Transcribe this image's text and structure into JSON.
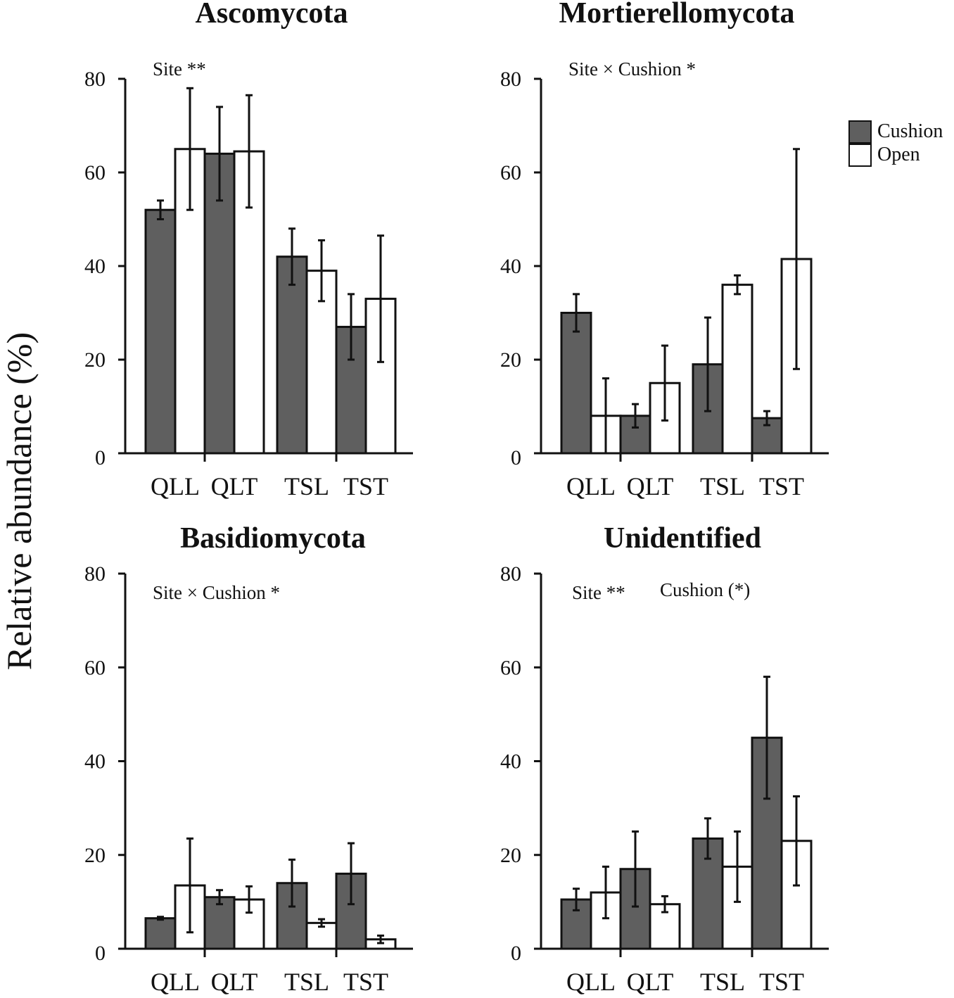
{
  "figure": {
    "ylabel": "Relative abundance (%)",
    "legend": {
      "cushion_label": "Cushion",
      "open_label": "Open",
      "cushion_color": "#5f5f5f",
      "open_color": "#ffffff"
    }
  },
  "chart_data": [
    {
      "type": "bar",
      "title": "Ascomycota",
      "annotations": [
        "Site **"
      ],
      "categories": [
        "QLL",
        "QLT",
        "TSL",
        "TST"
      ],
      "ylim": [
        0,
        80
      ],
      "yticks": [
        0,
        20,
        40,
        60,
        80
      ],
      "series": [
        {
          "name": "Cushion",
          "values": [
            52,
            64,
            42,
            27
          ],
          "errors": [
            2,
            10,
            6,
            7
          ]
        },
        {
          "name": "Open",
          "values": [
            65,
            64.5,
            39,
            33
          ],
          "errors": [
            13,
            12,
            6.5,
            13.5
          ]
        }
      ]
    },
    {
      "type": "bar",
      "title": "Mortierellomycota",
      "annotations": [
        "Site × Cushion *"
      ],
      "categories": [
        "QLL",
        "QLT",
        "TSL",
        "TST"
      ],
      "ylim": [
        0,
        80
      ],
      "yticks": [
        0,
        20,
        40,
        60,
        80
      ],
      "series": [
        {
          "name": "Cushion",
          "values": [
            30,
            8,
            19,
            7.5
          ],
          "errors": [
            4,
            2.5,
            10,
            1.5
          ]
        },
        {
          "name": "Open",
          "values": [
            8,
            15,
            36,
            41.5
          ],
          "errors": [
            8,
            8,
            2,
            23.5
          ]
        }
      ]
    },
    {
      "type": "bar",
      "title": "Basidiomycota",
      "annotations": [
        "Site × Cushion *"
      ],
      "categories": [
        "QLL",
        "QLT",
        "TSL",
        "TST"
      ],
      "ylim": [
        0,
        80
      ],
      "yticks": [
        0,
        20,
        40,
        60,
        80
      ],
      "series": [
        {
          "name": "Cushion",
          "values": [
            6.5,
            11,
            14,
            16
          ],
          "errors": [
            0.3,
            1.5,
            5,
            6.5
          ]
        },
        {
          "name": "Open",
          "values": [
            13.5,
            10.5,
            5.5,
            2
          ],
          "errors": [
            10,
            2.8,
            0.8,
            0.8
          ]
        }
      ]
    },
    {
      "type": "bar",
      "title": "Unidentified",
      "annotations": [
        "Site **",
        "Cushion (*)"
      ],
      "categories": [
        "QLL",
        "QLT",
        "TSL",
        "TST"
      ],
      "ylim": [
        0,
        80
      ],
      "yticks": [
        0,
        20,
        40,
        60,
        80
      ],
      "series": [
        {
          "name": "Cushion",
          "values": [
            10.5,
            17,
            23.5,
            45
          ],
          "errors": [
            2.3,
            8,
            4.3,
            13
          ]
        },
        {
          "name": "Open",
          "values": [
            12,
            9.5,
            17.5,
            23
          ],
          "errors": [
            5.5,
            1.7,
            7.5,
            9.5
          ]
        }
      ]
    }
  ]
}
